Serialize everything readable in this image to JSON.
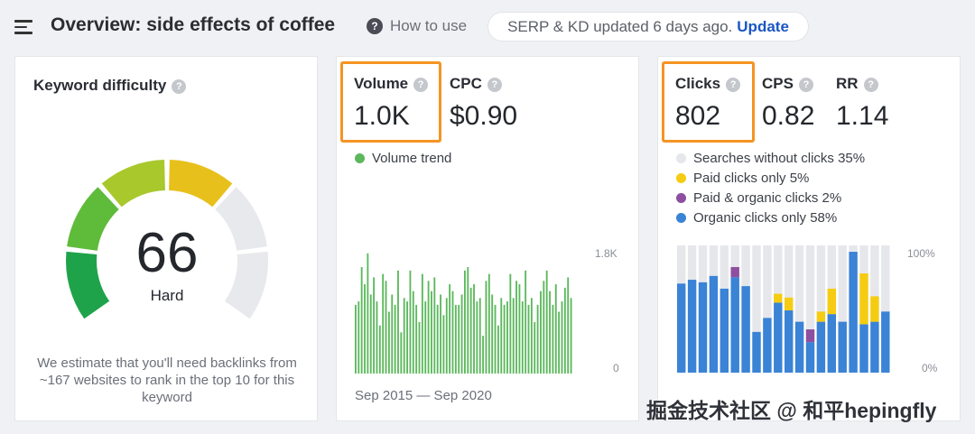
{
  "header": {
    "title": "Overview: side effects of coffee",
    "how_to_use": "How to use",
    "serp_status": "SERP & KD updated 6 days ago.",
    "update_label": "Update"
  },
  "keyword_difficulty": {
    "label": "Keyword difficulty",
    "value": "66",
    "level": "Hard",
    "description": "We estimate that you'll need backlinks from ~167 websites to rank in the top 10 for this keyword",
    "segment_colors": [
      "#1fa34a",
      "#5fbb3a",
      "#a8c82c",
      "#e8c01c",
      "#e8e9ec",
      "#e8e9ec"
    ],
    "filled_segments": 4
  },
  "volume_card": {
    "volume_label": "Volume",
    "volume_value": "1.0K",
    "cpc_label": "CPC",
    "cpc_value": "$0.90",
    "trend_label": "Volume trend",
    "trend_color": "#5cb85c",
    "axis_max": "1.8K",
    "axis_min": "0",
    "date_range": "Sep 2015 — Sep 2020"
  },
  "clicks_card": {
    "clicks_label": "Clicks",
    "clicks_value": "802",
    "cps_label": "CPS",
    "cps_value": "0.82",
    "rr_label": "RR",
    "rr_value": "1.14",
    "axis_max": "100%",
    "axis_min": "0%",
    "legend": [
      {
        "label": "Searches without clicks 35%",
        "color": "#e6e7eb"
      },
      {
        "label": "Paid clicks only 5%",
        "color": "#f5cc12"
      },
      {
        "label": "Paid & organic clicks 2%",
        "color": "#8e4fa0"
      },
      {
        "label": "Organic clicks only 58%",
        "color": "#3a83d6"
      }
    ]
  },
  "chart_data": [
    {
      "type": "bar",
      "title": "",
      "series": [
        {
          "name": "Volume trend",
          "values": [
            1000,
            1050,
            1550,
            1300,
            1750,
            1150,
            1400,
            1050,
            700,
            1450,
            1350,
            900,
            1150,
            1000,
            1500,
            600,
            1100,
            1050,
            1500,
            1200,
            1000,
            750,
            1450,
            1050,
            1350,
            1200,
            1400,
            1000,
            1150,
            850,
            1100,
            1300,
            1200,
            1000,
            1000,
            1150,
            1500,
            1550,
            1250,
            1300,
            1050,
            1100,
            550,
            1350,
            1450,
            1150,
            1000,
            700,
            1100,
            1000,
            1050,
            1450,
            1100,
            1350,
            1300,
            1050,
            1500,
            1000,
            1100,
            750,
            1000,
            1200,
            1350,
            1500,
            1200,
            1000,
            1300,
            900,
            1050,
            1250,
            1400,
            1100
          ]
        }
      ],
      "ylim": [
        0,
        1800
      ],
      "y_ticks": [
        "0",
        "1.8K"
      ],
      "x_range": [
        "Sep 2015",
        "Sep 2020"
      ]
    },
    {
      "type": "bar",
      "stacked": true,
      "title": "",
      "ylim": [
        0,
        100
      ],
      "y_ticks": [
        "0%",
        "100%"
      ],
      "series": [
        {
          "name": "Organic clicks only",
          "values": [
            70,
            73,
            71,
            76,
            66,
            75,
            68,
            32,
            43,
            55,
            49,
            40,
            24,
            40,
            46,
            40,
            95,
            38,
            40,
            48
          ]
        },
        {
          "name": "Paid & organic clicks",
          "values": [
            0,
            0,
            0,
            0,
            0,
            8,
            0,
            0,
            0,
            0,
            0,
            0,
            10,
            0,
            0,
            0,
            0,
            0,
            0,
            0
          ]
        },
        {
          "name": "Paid clicks only",
          "values": [
            0,
            0,
            0,
            0,
            0,
            0,
            0,
            0,
            0,
            7,
            10,
            0,
            0,
            8,
            20,
            0,
            0,
            40,
            20,
            0
          ]
        }
      ]
    }
  ]
}
